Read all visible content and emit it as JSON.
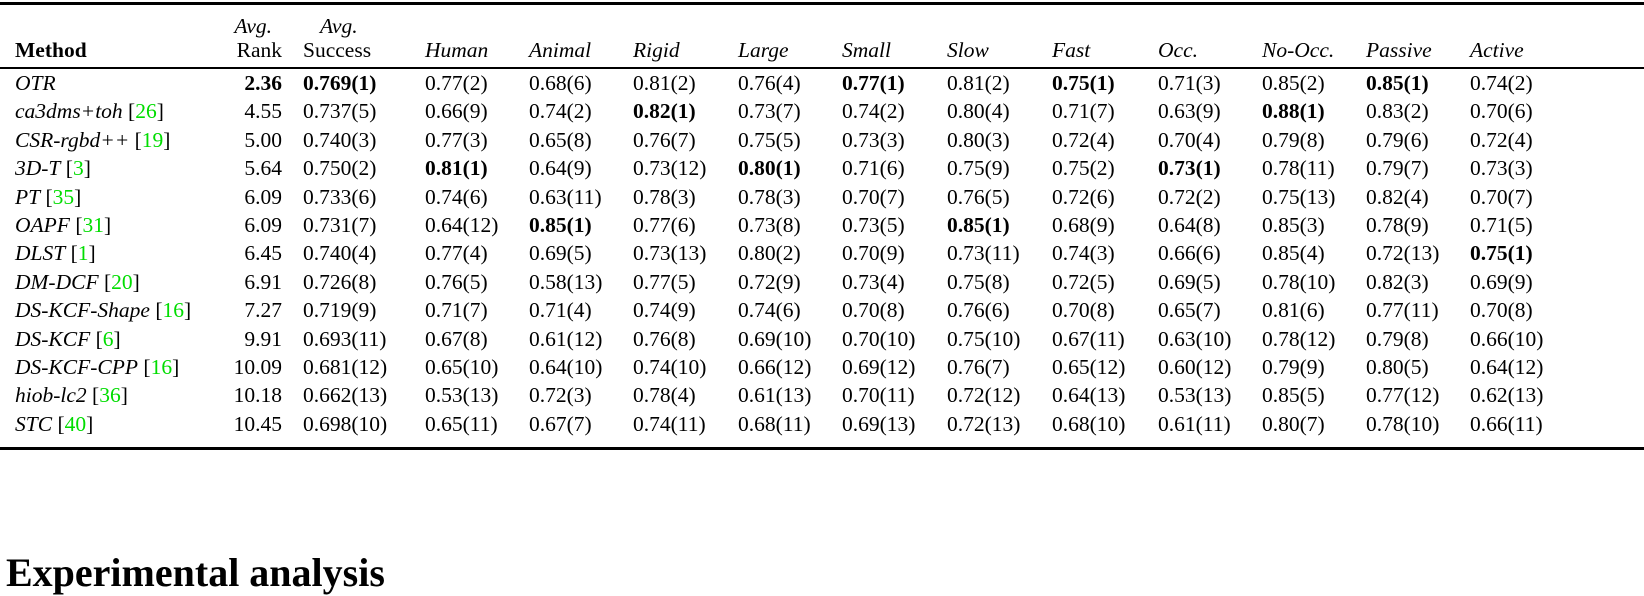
{
  "colors": {
    "citation_green": "#00dd00"
  },
  "section": {
    "heading": "Experimental analysis"
  },
  "table": {
    "header": {
      "method": "Method",
      "avg_top": "Avg.",
      "rank": "Rank",
      "success": "Success",
      "conditions": [
        "Human",
        "Animal",
        "Rigid",
        "Large",
        "Small",
        "Slow",
        "Fast",
        "Occ.",
        "No-Occ.",
        "Passive",
        "Active"
      ]
    },
    "rows": [
      {
        "method": "OTR",
        "ref": "",
        "cells": [
          {
            "t": "2.36",
            "b": true
          },
          {
            "t": "0.769(1)",
            "b": true
          },
          {
            "t": "0.77(2)",
            "b": false
          },
          {
            "t": "0.68(6)",
            "b": false
          },
          {
            "t": "0.81(2)",
            "b": false
          },
          {
            "t": "0.76(4)",
            "b": false
          },
          {
            "t": "0.77(1)",
            "b": true
          },
          {
            "t": "0.81(2)",
            "b": false
          },
          {
            "t": "0.75(1)",
            "b": true
          },
          {
            "t": "0.71(3)",
            "b": false
          },
          {
            "t": "0.85(2)",
            "b": false
          },
          {
            "t": "0.85(1)",
            "b": true
          },
          {
            "t": "0.74(2)",
            "b": false
          }
        ]
      },
      {
        "method": "ca3dms+toh",
        "ref": "26",
        "cells": [
          {
            "t": "4.55",
            "b": false
          },
          {
            "t": "0.737(5)",
            "b": false
          },
          {
            "t": "0.66(9)",
            "b": false
          },
          {
            "t": "0.74(2)",
            "b": false
          },
          {
            "t": "0.82(1)",
            "b": true
          },
          {
            "t": "0.73(7)",
            "b": false
          },
          {
            "t": "0.74(2)",
            "b": false
          },
          {
            "t": "0.80(4)",
            "b": false
          },
          {
            "t": "0.71(7)",
            "b": false
          },
          {
            "t": "0.63(9)",
            "b": false
          },
          {
            "t": "0.88(1)",
            "b": true
          },
          {
            "t": "0.83(2)",
            "b": false
          },
          {
            "t": "0.70(6)",
            "b": false
          }
        ]
      },
      {
        "method": "CSR-rgbd++",
        "ref": "19",
        "cells": [
          {
            "t": "5.00",
            "b": false
          },
          {
            "t": "0.740(3)",
            "b": false
          },
          {
            "t": "0.77(3)",
            "b": false
          },
          {
            "t": "0.65(8)",
            "b": false
          },
          {
            "t": "0.76(7)",
            "b": false
          },
          {
            "t": "0.75(5)",
            "b": false
          },
          {
            "t": "0.73(3)",
            "b": false
          },
          {
            "t": "0.80(3)",
            "b": false
          },
          {
            "t": "0.72(4)",
            "b": false
          },
          {
            "t": "0.70(4)",
            "b": false
          },
          {
            "t": "0.79(8)",
            "b": false
          },
          {
            "t": "0.79(6)",
            "b": false
          },
          {
            "t": "0.72(4)",
            "b": false
          }
        ]
      },
      {
        "method": "3D-T",
        "ref": "3",
        "cells": [
          {
            "t": "5.64",
            "b": false
          },
          {
            "t": "0.750(2)",
            "b": false
          },
          {
            "t": "0.81(1)",
            "b": true
          },
          {
            "t": "0.64(9)",
            "b": false
          },
          {
            "t": "0.73(12)",
            "b": false
          },
          {
            "t": "0.80(1)",
            "b": true
          },
          {
            "t": "0.71(6)",
            "b": false
          },
          {
            "t": "0.75(9)",
            "b": false
          },
          {
            "t": "0.75(2)",
            "b": false
          },
          {
            "t": "0.73(1)",
            "b": true
          },
          {
            "t": "0.78(11)",
            "b": false
          },
          {
            "t": "0.79(7)",
            "b": false
          },
          {
            "t": "0.73(3)",
            "b": false
          }
        ]
      },
      {
        "method": "PT",
        "ref": "35",
        "cells": [
          {
            "t": "6.09",
            "b": false
          },
          {
            "t": "0.733(6)",
            "b": false
          },
          {
            "t": "0.74(6)",
            "b": false
          },
          {
            "t": "0.63(11)",
            "b": false
          },
          {
            "t": "0.78(3)",
            "b": false
          },
          {
            "t": "0.78(3)",
            "b": false
          },
          {
            "t": "0.70(7)",
            "b": false
          },
          {
            "t": "0.76(5)",
            "b": false
          },
          {
            "t": "0.72(6)",
            "b": false
          },
          {
            "t": "0.72(2)",
            "b": false
          },
          {
            "t": "0.75(13)",
            "b": false
          },
          {
            "t": "0.82(4)",
            "b": false
          },
          {
            "t": "0.70(7)",
            "b": false
          }
        ]
      },
      {
        "method": "OAPF",
        "ref": "31",
        "cells": [
          {
            "t": "6.09",
            "b": false
          },
          {
            "t": "0.731(7)",
            "b": false
          },
          {
            "t": "0.64(12)",
            "b": false
          },
          {
            "t": "0.85(1)",
            "b": true
          },
          {
            "t": "0.77(6)",
            "b": false
          },
          {
            "t": "0.73(8)",
            "b": false
          },
          {
            "t": "0.73(5)",
            "b": false
          },
          {
            "t": "0.85(1)",
            "b": true
          },
          {
            "t": "0.68(9)",
            "b": false
          },
          {
            "t": "0.64(8)",
            "b": false
          },
          {
            "t": "0.85(3)",
            "b": false
          },
          {
            "t": "0.78(9)",
            "b": false
          },
          {
            "t": "0.71(5)",
            "b": false
          }
        ]
      },
      {
        "method": "DLST",
        "ref": "1",
        "cells": [
          {
            "t": "6.45",
            "b": false
          },
          {
            "t": "0.740(4)",
            "b": false
          },
          {
            "t": "0.77(4)",
            "b": false
          },
          {
            "t": "0.69(5)",
            "b": false
          },
          {
            "t": "0.73(13)",
            "b": false
          },
          {
            "t": "0.80(2)",
            "b": false
          },
          {
            "t": "0.70(9)",
            "b": false
          },
          {
            "t": "0.73(11)",
            "b": false
          },
          {
            "t": "0.74(3)",
            "b": false
          },
          {
            "t": "0.66(6)",
            "b": false
          },
          {
            "t": "0.85(4)",
            "b": false
          },
          {
            "t": "0.72(13)",
            "b": false
          },
          {
            "t": "0.75(1)",
            "b": true
          }
        ]
      },
      {
        "method": "DM-DCF",
        "ref": "20",
        "cells": [
          {
            "t": "6.91",
            "b": false
          },
          {
            "t": "0.726(8)",
            "b": false
          },
          {
            "t": "0.76(5)",
            "b": false
          },
          {
            "t": "0.58(13)",
            "b": false
          },
          {
            "t": "0.77(5)",
            "b": false
          },
          {
            "t": "0.72(9)",
            "b": false
          },
          {
            "t": "0.73(4)",
            "b": false
          },
          {
            "t": "0.75(8)",
            "b": false
          },
          {
            "t": "0.72(5)",
            "b": false
          },
          {
            "t": "0.69(5)",
            "b": false
          },
          {
            "t": "0.78(10)",
            "b": false
          },
          {
            "t": "0.82(3)",
            "b": false
          },
          {
            "t": "0.69(9)",
            "b": false
          }
        ]
      },
      {
        "method": "DS-KCF-Shape",
        "ref": "16",
        "cells": [
          {
            "t": "7.27",
            "b": false
          },
          {
            "t": "0.719(9)",
            "b": false
          },
          {
            "t": "0.71(7)",
            "b": false
          },
          {
            "t": "0.71(4)",
            "b": false
          },
          {
            "t": "0.74(9)",
            "b": false
          },
          {
            "t": "0.74(6)",
            "b": false
          },
          {
            "t": "0.70(8)",
            "b": false
          },
          {
            "t": "0.76(6)",
            "b": false
          },
          {
            "t": "0.70(8)",
            "b": false
          },
          {
            "t": "0.65(7)",
            "b": false
          },
          {
            "t": "0.81(6)",
            "b": false
          },
          {
            "t": "0.77(11)",
            "b": false
          },
          {
            "t": "0.70(8)",
            "b": false
          }
        ]
      },
      {
        "method": "DS-KCF",
        "ref": "6",
        "cells": [
          {
            "t": "9.91",
            "b": false
          },
          {
            "t": "0.693(11)",
            "b": false
          },
          {
            "t": "0.67(8)",
            "b": false
          },
          {
            "t": "0.61(12)",
            "b": false
          },
          {
            "t": "0.76(8)",
            "b": false
          },
          {
            "t": "0.69(10)",
            "b": false
          },
          {
            "t": "0.70(10)",
            "b": false
          },
          {
            "t": "0.75(10)",
            "b": false
          },
          {
            "t": "0.67(11)",
            "b": false
          },
          {
            "t": "0.63(10)",
            "b": false
          },
          {
            "t": "0.78(12)",
            "b": false
          },
          {
            "t": "0.79(8)",
            "b": false
          },
          {
            "t": "0.66(10)",
            "b": false
          }
        ]
      },
      {
        "method": "DS-KCF-CPP",
        "ref": "16",
        "cells": [
          {
            "t": "10.09",
            "b": false
          },
          {
            "t": "0.681(12)",
            "b": false
          },
          {
            "t": "0.65(10)",
            "b": false
          },
          {
            "t": "0.64(10)",
            "b": false
          },
          {
            "t": "0.74(10)",
            "b": false
          },
          {
            "t": "0.66(12)",
            "b": false
          },
          {
            "t": "0.69(12)",
            "b": false
          },
          {
            "t": "0.76(7)",
            "b": false
          },
          {
            "t": "0.65(12)",
            "b": false
          },
          {
            "t": "0.60(12)",
            "b": false
          },
          {
            "t": "0.79(9)",
            "b": false
          },
          {
            "t": "0.80(5)",
            "b": false
          },
          {
            "t": "0.64(12)",
            "b": false
          }
        ]
      },
      {
        "method": "hiob-lc2",
        "ref": "36",
        "cells": [
          {
            "t": "10.18",
            "b": false
          },
          {
            "t": "0.662(13)",
            "b": false
          },
          {
            "t": "0.53(13)",
            "b": false
          },
          {
            "t": "0.72(3)",
            "b": false
          },
          {
            "t": "0.78(4)",
            "b": false
          },
          {
            "t": "0.61(13)",
            "b": false
          },
          {
            "t": "0.70(11)",
            "b": false
          },
          {
            "t": "0.72(12)",
            "b": false
          },
          {
            "t": "0.64(13)",
            "b": false
          },
          {
            "t": "0.53(13)",
            "b": false
          },
          {
            "t": "0.85(5)",
            "b": false
          },
          {
            "t": "0.77(12)",
            "b": false
          },
          {
            "t": "0.62(13)",
            "b": false
          }
        ]
      },
      {
        "method": "STC",
        "ref": "40",
        "cells": [
          {
            "t": "10.45",
            "b": false
          },
          {
            "t": "0.698(10)",
            "b": false
          },
          {
            "t": "0.65(11)",
            "b": false
          },
          {
            "t": "0.67(7)",
            "b": false
          },
          {
            "t": "0.74(11)",
            "b": false
          },
          {
            "t": "0.68(11)",
            "b": false
          },
          {
            "t": "0.69(13)",
            "b": false
          },
          {
            "t": "0.72(13)",
            "b": false
          },
          {
            "t": "0.68(10)",
            "b": false
          },
          {
            "t": "0.61(11)",
            "b": false
          },
          {
            "t": "0.80(7)",
            "b": false
          },
          {
            "t": "0.78(10)",
            "b": false
          },
          {
            "t": "0.66(11)",
            "b": false
          }
        ]
      }
    ]
  }
}
